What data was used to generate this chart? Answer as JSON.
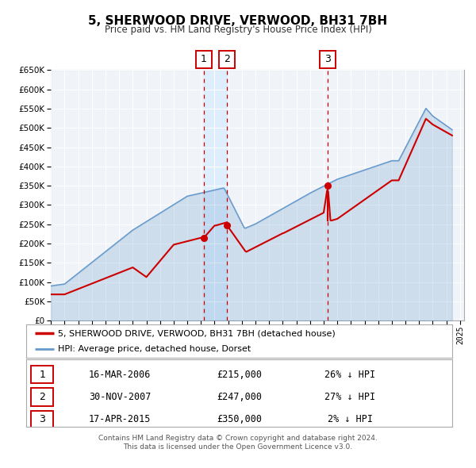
{
  "title": "5, SHERWOOD DRIVE, VERWOOD, BH31 7BH",
  "subtitle": "Price paid vs. HM Land Registry's House Price Index (HPI)",
  "ylim": [
    0,
    650000
  ],
  "yticks": [
    0,
    50000,
    100000,
    150000,
    200000,
    250000,
    300000,
    350000,
    400000,
    450000,
    500000,
    550000,
    600000,
    650000
  ],
  "xlim_start": 1995.0,
  "xlim_end": 2025.3,
  "sale_color": "#cc0000",
  "hpi_color": "#6699cc",
  "vline_color": "#cc0000",
  "sale_label": "5, SHERWOOD DRIVE, VERWOOD, BH31 7BH (detached house)",
  "hpi_label": "HPI: Average price, detached house, Dorset",
  "transactions": [
    {
      "num": 1,
      "date": "16-MAR-2006",
      "year": 2006.21,
      "price": 215000,
      "price_str": "£215,000",
      "pct": "26%",
      "dir": "↓"
    },
    {
      "num": 2,
      "date": "30-NOV-2007",
      "year": 2007.92,
      "price": 247000,
      "price_str": "£247,000",
      "pct": "27%",
      "dir": "↓"
    },
    {
      "num": 3,
      "date": "17-APR-2015",
      "year": 2015.3,
      "price": 350000,
      "price_str": "£350,000",
      "pct": "2%",
      "dir": "↓"
    }
  ],
  "footer1": "Contains HM Land Registry data © Crown copyright and database right 2024.",
  "footer2": "This data is licensed under the Open Government Licence v3.0.",
  "t3_drop_to": 260000
}
